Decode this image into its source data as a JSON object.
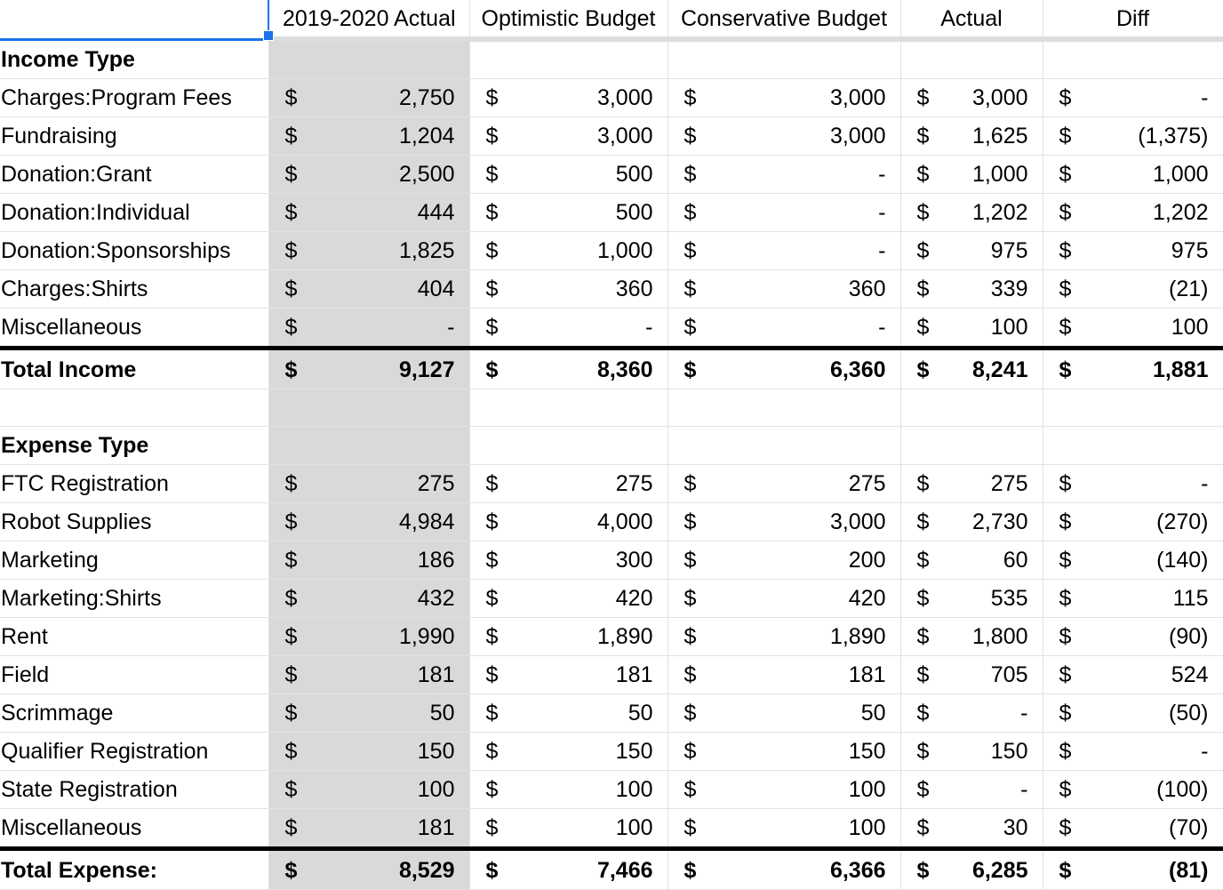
{
  "headers": [
    "",
    "2019-2020 Actual",
    "Optimistic Budget",
    "Conservative Budget",
    "Actual",
    "Diff"
  ],
  "currency": "$",
  "income": {
    "section_label": "Income Type",
    "rows": [
      {
        "label": "Charges:Program Fees",
        "values": [
          "2,750",
          "3,000",
          "3,000",
          "3,000",
          "-"
        ]
      },
      {
        "label": "Fundraising",
        "values": [
          "1,204",
          "3,000",
          "3,000",
          "1,625",
          "(1,375)"
        ]
      },
      {
        "label": "Donation:Grant",
        "values": [
          "2,500",
          "500",
          "-",
          "1,000",
          "1,000"
        ]
      },
      {
        "label": "Donation:Individual",
        "values": [
          "444",
          "500",
          "-",
          "1,202",
          "1,202"
        ]
      },
      {
        "label": "Donation:Sponsorships",
        "values": [
          "1,825",
          "1,000",
          "-",
          "975",
          "975"
        ]
      },
      {
        "label": "Charges:Shirts",
        "values": [
          "404",
          "360",
          "360",
          "339",
          "(21)"
        ]
      },
      {
        "label": "Miscellaneous",
        "values": [
          "-",
          "-",
          "-",
          "100",
          "100"
        ]
      }
    ],
    "total": {
      "label": "Total Income",
      "values": [
        "9,127",
        "8,360",
        "6,360",
        "8,241",
        "1,881"
      ]
    }
  },
  "expense": {
    "section_label": "Expense Type",
    "rows": [
      {
        "label": "FTC Registration",
        "values": [
          "275",
          "275",
          "275",
          "275",
          "-"
        ]
      },
      {
        "label": "Robot Supplies",
        "values": [
          "4,984",
          "4,000",
          "3,000",
          "2,730",
          "(270)"
        ]
      },
      {
        "label": "Marketing",
        "values": [
          "186",
          "300",
          "200",
          "60",
          "(140)"
        ]
      },
      {
        "label": "Marketing:Shirts",
        "values": [
          "432",
          "420",
          "420",
          "535",
          "115"
        ]
      },
      {
        "label": "Rent",
        "values": [
          "1,990",
          "1,890",
          "1,890",
          "1,800",
          "(90)"
        ]
      },
      {
        "label": "Field",
        "values": [
          "181",
          "181",
          "181",
          "705",
          "524"
        ]
      },
      {
        "label": "Scrimmage",
        "values": [
          "50",
          "50",
          "50",
          "-",
          "(50)"
        ]
      },
      {
        "label": "Qualifier Registration",
        "values": [
          "150",
          "150",
          "150",
          "150",
          "-"
        ]
      },
      {
        "label": "State Registration",
        "values": [
          "100",
          "100",
          "100",
          "-",
          "(100)"
        ]
      },
      {
        "label": "Miscellaneous",
        "values": [
          "181",
          "100",
          "100",
          "30",
          "(70)"
        ]
      }
    ],
    "total": {
      "label": "Total Expense:",
      "values": [
        "8,529",
        "7,466",
        "6,366",
        "6,285",
        "(81)"
      ]
    }
  }
}
